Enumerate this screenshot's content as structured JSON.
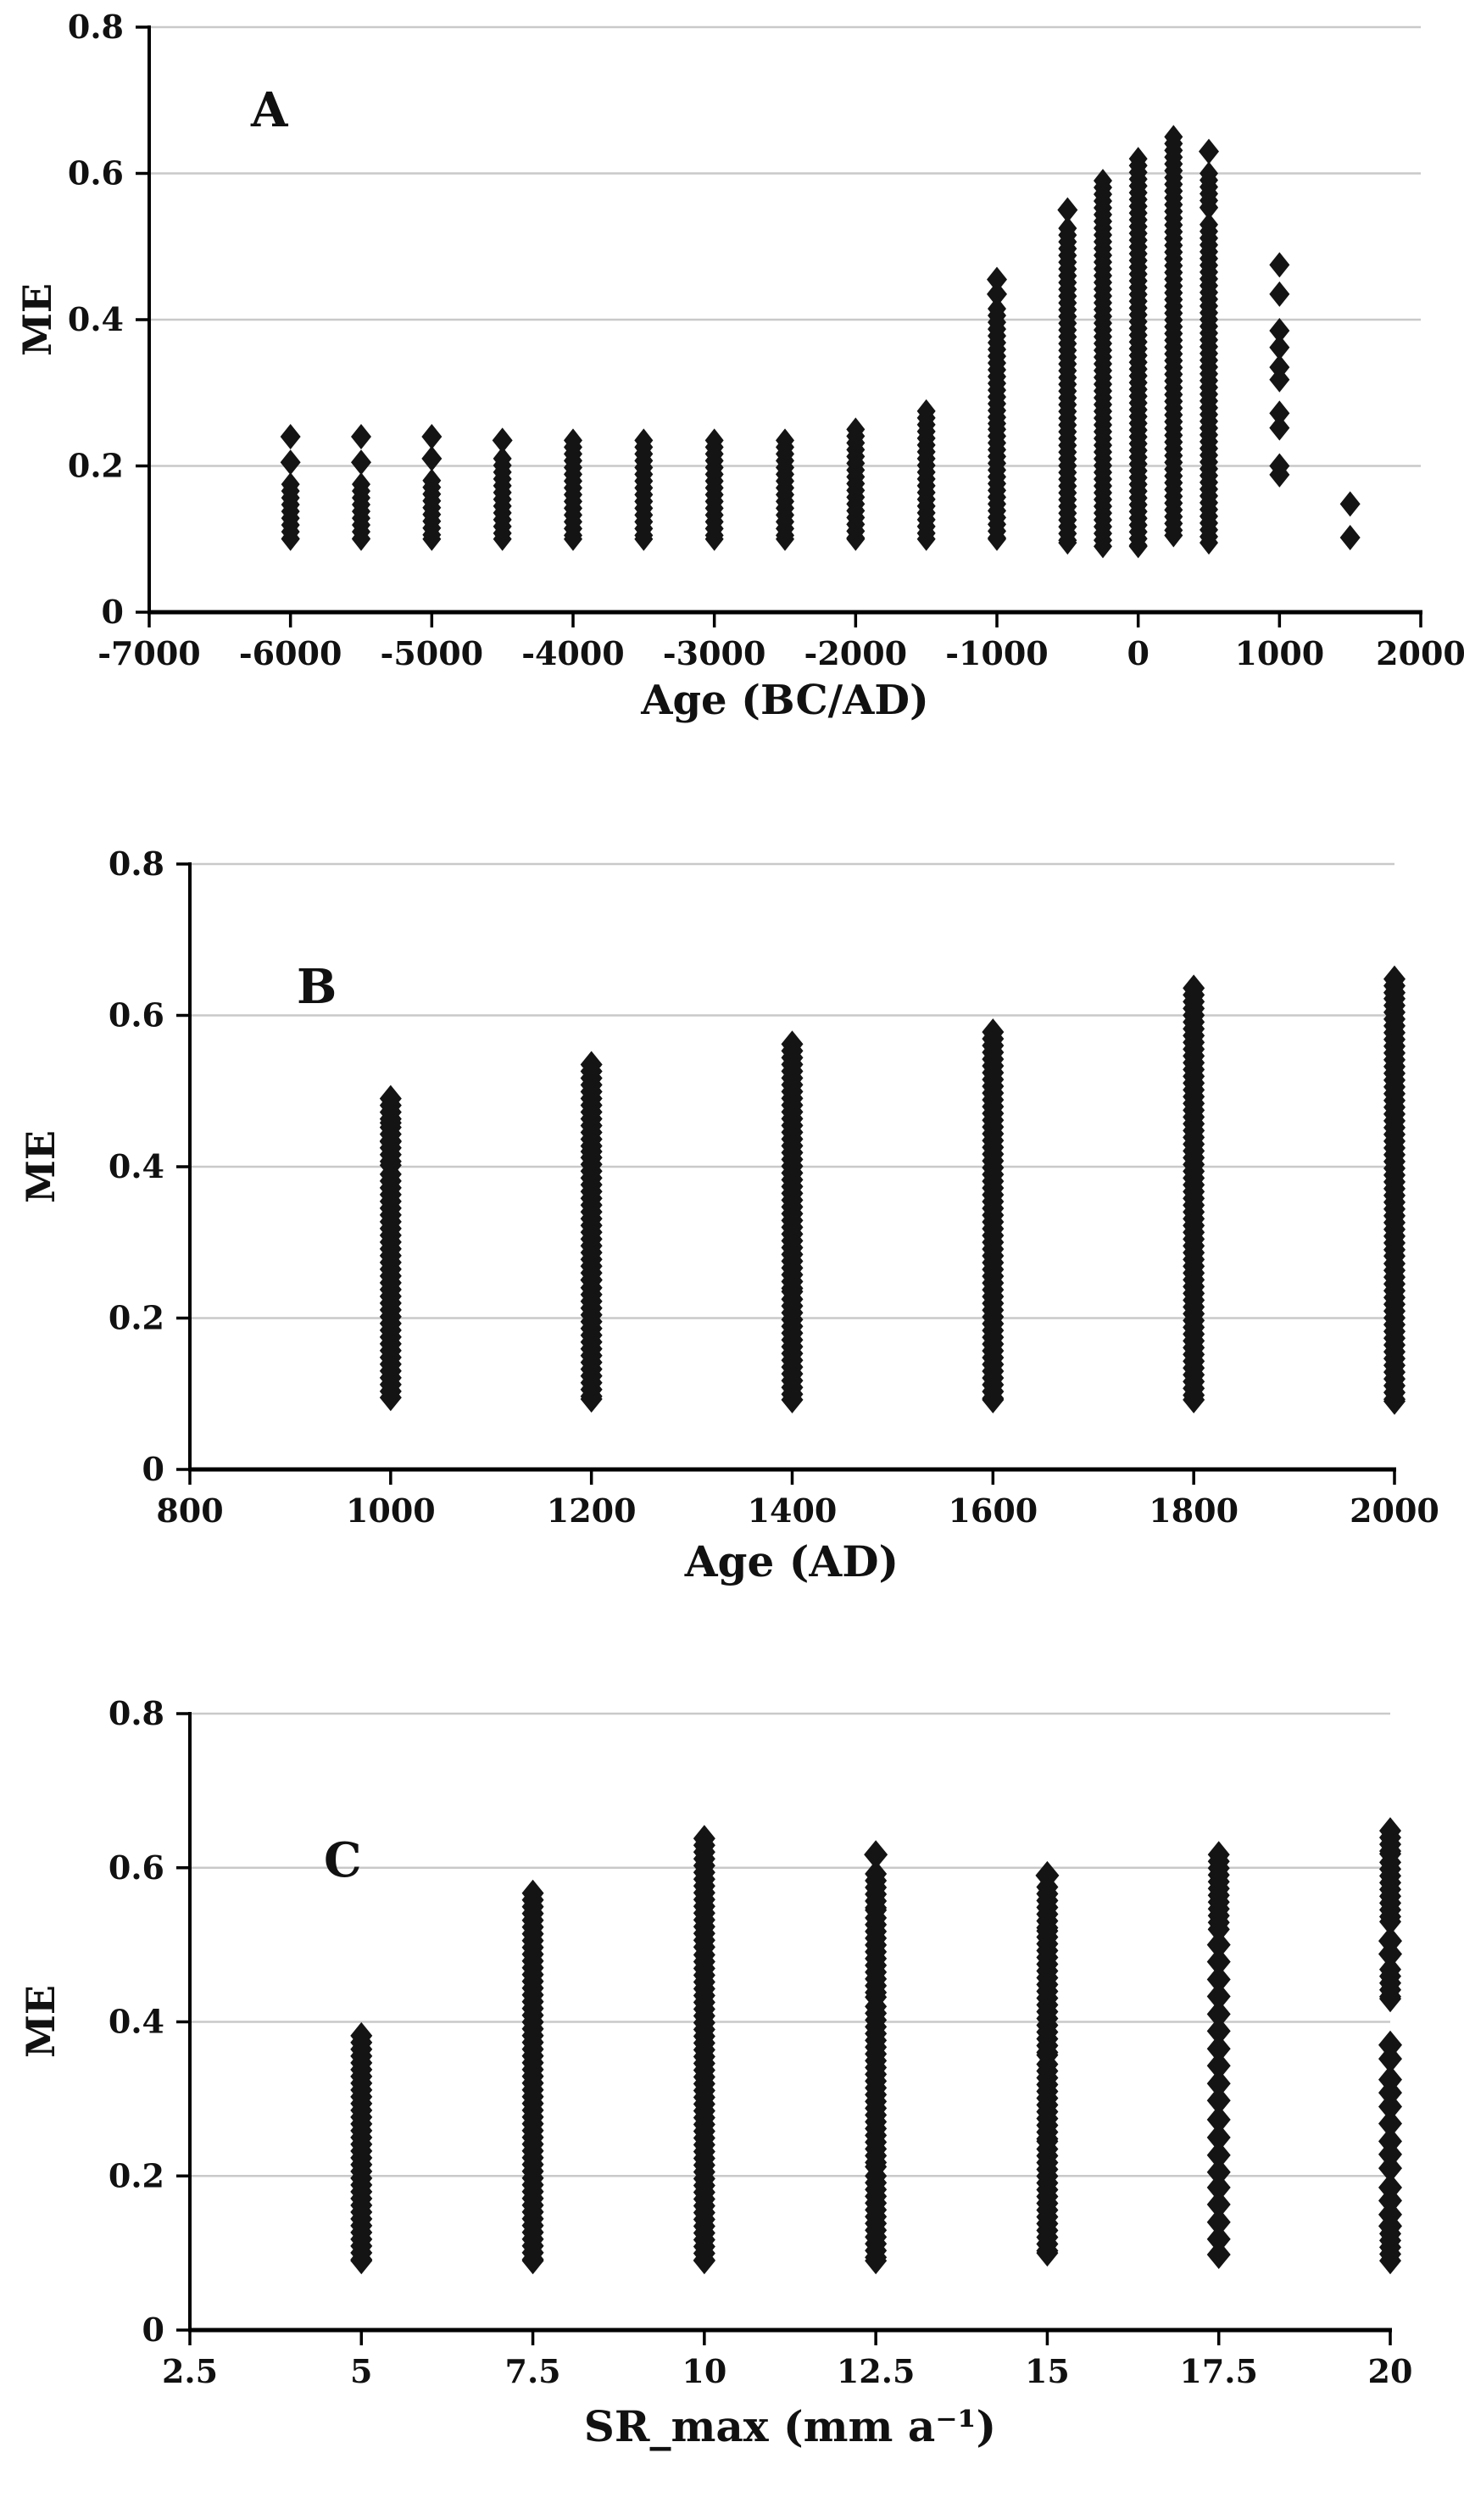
{
  "page": {
    "background": "#ffffff",
    "marker_color": "#141414",
    "grid_color": "#c9c9c9",
    "axis_color": "#000000"
  },
  "chart_data": [
    {
      "panel_label": "A",
      "type": "scatter",
      "marker": "diamond",
      "title": "",
      "xlabel": "Age (BC/AD)",
      "ylabel": "ME",
      "xlim": [
        -7000,
        2000
      ],
      "ylim": [
        0,
        0.8
      ],
      "grid": "horizontal",
      "legend": "none",
      "x_ticks": [
        {
          "v": -7000,
          "label": "-7000"
        },
        {
          "v": -6000,
          "label": "-6000"
        },
        {
          "v": -5000,
          "label": "-5000"
        },
        {
          "v": -4000,
          "label": "-4000"
        },
        {
          "v": -3000,
          "label": "-3000"
        },
        {
          "v": -2000,
          "label": "-2000"
        },
        {
          "v": -1000,
          "label": "-1000"
        },
        {
          "v": 0,
          "label": "0"
        },
        {
          "v": 1000,
          "label": "1000"
        },
        {
          "v": 2000,
          "label": "2000"
        }
      ],
      "y_ticks": [
        {
          "v": 0,
          "label": "0"
        },
        {
          "v": 0.2,
          "label": "0.2"
        },
        {
          "v": 0.4,
          "label": "0.4"
        },
        {
          "v": 0.6,
          "label": "0.6"
        },
        {
          "v": 0.8,
          "label": "0.8"
        }
      ],
      "columns": [
        {
          "x": -6000,
          "segments": [
            [
              0.1,
              0.175
            ]
          ],
          "points": [
            0.205,
            0.24
          ]
        },
        {
          "x": -5500,
          "segments": [
            [
              0.1,
              0.175
            ]
          ],
          "points": [
            0.205,
            0.24
          ]
        },
        {
          "x": -5000,
          "segments": [
            [
              0.1,
              0.18
            ]
          ],
          "points": [
            0.21,
            0.24
          ]
        },
        {
          "x": -4500,
          "segments": [
            [
              0.1,
              0.21
            ]
          ],
          "points": [
            0.235
          ]
        },
        {
          "x": -4000,
          "segments": [
            [
              0.1,
              0.235
            ]
          ],
          "points": []
        },
        {
          "x": -3500,
          "segments": [
            [
              0.1,
              0.235
            ]
          ],
          "points": []
        },
        {
          "x": -3000,
          "segments": [
            [
              0.1,
              0.235
            ]
          ],
          "points": []
        },
        {
          "x": -2500,
          "segments": [
            [
              0.1,
              0.235
            ]
          ],
          "points": []
        },
        {
          "x": -2000,
          "segments": [
            [
              0.1,
              0.25
            ]
          ],
          "points": []
        },
        {
          "x": -1500,
          "segments": [
            [
              0.1,
              0.275
            ]
          ],
          "points": []
        },
        {
          "x": -1000,
          "segments": [
            [
              0.1,
              0.25
            ],
            [
              0.258,
              0.415
            ]
          ],
          "points": [
            0.435,
            0.455
          ]
        },
        {
          "x": -500,
          "segments": [
            [
              0.095,
              0.525
            ]
          ],
          "points": [
            0.55
          ]
        },
        {
          "x": -250,
          "segments": [
            [
              0.09,
              0.59
            ]
          ],
          "points": []
        },
        {
          "x": 0,
          "segments": [
            [
              0.09,
              0.62
            ]
          ],
          "points": []
        },
        {
          "x": 250,
          "segments": [
            [
              0.105,
              0.65
            ]
          ],
          "points": []
        },
        {
          "x": 500,
          "segments": [
            [
              0.095,
              0.53
            ],
            [
              0.553,
              0.6
            ]
          ],
          "points": [
            0.63
          ]
        },
        {
          "x": 1000,
          "segments": [],
          "points": [
            0.475,
            0.435,
            0.385,
            0.362,
            0.335,
            0.318,
            0.272,
            0.252,
            0.2,
            0.188
          ]
        },
        {
          "x": 1500,
          "segments": [],
          "points": [
            0.148,
            0.102
          ]
        }
      ]
    },
    {
      "panel_label": "B",
      "type": "scatter",
      "marker": "diamond",
      "title": "",
      "xlabel": "Age (AD)",
      "ylabel": "ME",
      "xlim": [
        800,
        2000
      ],
      "ylim": [
        0,
        0.8
      ],
      "grid": "horizontal",
      "legend": "none",
      "x_ticks": [
        {
          "v": 800,
          "label": "800"
        },
        {
          "v": 1000,
          "label": "1000"
        },
        {
          "v": 1200,
          "label": "1200"
        },
        {
          "v": 1400,
          "label": "1400"
        },
        {
          "v": 1600,
          "label": "1600"
        },
        {
          "v": 1800,
          "label": "1800"
        },
        {
          "v": 2000,
          "label": "2000"
        }
      ],
      "y_ticks": [
        {
          "v": 0,
          "label": "0"
        },
        {
          "v": 0.2,
          "label": "0.2"
        },
        {
          "v": 0.4,
          "label": "0.4"
        },
        {
          "v": 0.6,
          "label": "0.6"
        },
        {
          "v": 0.8,
          "label": "0.8"
        }
      ],
      "columns": [
        {
          "x": 1000,
          "segments": [
            [
              0.095,
              0.39
            ],
            [
              0.402,
              0.425
            ],
            [
              0.433,
              0.452
            ],
            [
              0.458,
              0.49
            ]
          ],
          "points": []
        },
        {
          "x": 1200,
          "segments": [
            [
              0.093,
              0.24
            ],
            [
              0.25,
              0.412
            ],
            [
              0.42,
              0.535
            ]
          ],
          "points": []
        },
        {
          "x": 1400,
          "segments": [
            [
              0.092,
              0.225
            ],
            [
              0.235,
              0.562
            ]
          ],
          "points": []
        },
        {
          "x": 1600,
          "segments": [
            [
              0.092,
              0.578
            ]
          ],
          "points": []
        },
        {
          "x": 1800,
          "segments": [
            [
              0.092,
              0.636
            ]
          ],
          "points": []
        },
        {
          "x": 2000,
          "segments": [
            [
              0.09,
              0.272
            ],
            [
              0.282,
              0.622
            ],
            [
              0.63,
              0.648
            ]
          ],
          "points": []
        }
      ]
    },
    {
      "panel_label": "C",
      "type": "scatter",
      "marker": "diamond",
      "title": "",
      "xlabel": "SR_max (mm a⁻¹)",
      "ylabel": "ME",
      "xlim": [
        2.5,
        20
      ],
      "ylim": [
        0,
        0.8
      ],
      "grid": "horizontal",
      "legend": "none",
      "x_ticks": [
        {
          "v": 2.5,
          "label": "2.5"
        },
        {
          "v": 5,
          "label": "5"
        },
        {
          "v": 7.5,
          "label": "7.5"
        },
        {
          "v": 10,
          "label": "10"
        },
        {
          "v": 12.5,
          "label": "12.5"
        },
        {
          "v": 15,
          "label": "15"
        },
        {
          "v": 17.5,
          "label": "17.5"
        },
        {
          "v": 20,
          "label": "20"
        }
      ],
      "y_ticks": [
        {
          "v": 0,
          "label": "0"
        },
        {
          "v": 0.2,
          "label": "0.2"
        },
        {
          "v": 0.4,
          "label": "0.4"
        },
        {
          "v": 0.6,
          "label": "0.6"
        },
        {
          "v": 0.8,
          "label": "0.8"
        }
      ],
      "columns": [
        {
          "x": 5,
          "segments": [
            [
              0.09,
              0.382
            ]
          ],
          "points": []
        },
        {
          "x": 7.5,
          "segments": [
            [
              0.09,
              0.567
            ]
          ],
          "points": []
        },
        {
          "x": 10,
          "segments": [
            [
              0.09,
              0.487
            ],
            [
              0.497,
              0.638
            ]
          ],
          "points": []
        },
        {
          "x": 12.5,
          "segments": [
            [
              0.09,
              0.2
            ],
            [
              0.212,
              0.42
            ],
            [
              0.432,
              0.535
            ],
            [
              0.545,
              0.592
            ]
          ],
          "points": [
            0.617
          ]
        },
        {
          "x": 15,
          "segments": [
            [
              0.1,
              0.235
            ],
            [
              0.245,
              0.345
            ],
            [
              0.357,
              0.51
            ],
            [
              0.518,
              0.575
            ]
          ],
          "points": [
            0.59
          ]
        },
        {
          "x": 17.5,
          "segments": [
            [
              0.52,
              0.617
            ]
          ],
          "points": [
            0.5,
            0.478,
            0.455,
            0.433,
            0.41,
            0.388,
            0.365,
            0.343,
            0.32,
            0.298,
            0.273,
            0.25,
            0.227,
            0.205,
            0.185,
            0.163,
            0.14,
            0.118,
            0.098
          ]
        },
        {
          "x": 20,
          "segments": [
            [
              0.618,
              0.648
            ],
            [
              0.53,
              0.607
            ],
            [
              0.43,
              0.468
            ],
            [
              0.09,
              0.125
            ]
          ],
          "points": [
            0.505,
            0.488,
            0.37,
            0.352,
            0.325,
            0.308,
            0.29,
            0.268,
            0.245,
            0.228,
            0.21,
            0.185,
            0.168,
            0.15,
            0.135
          ]
        }
      ]
    }
  ]
}
